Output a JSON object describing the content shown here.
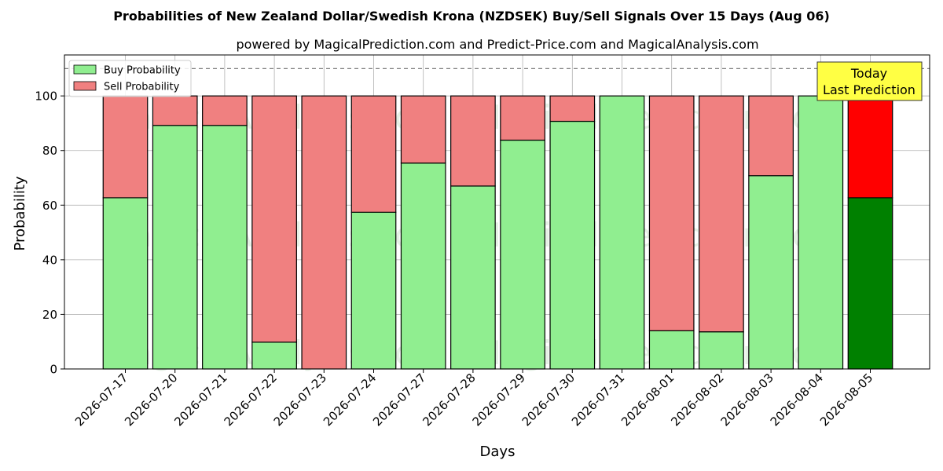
{
  "chart_data": {
    "type": "bar",
    "stacked": true,
    "title": "Probabilities of New Zealand Dollar/Swedish Krona (NZDSEK) Buy/Sell Signals Over 15 Days (Aug 06)",
    "subtitle": "powered by MagicalPrediction.com and Predict-Price.com and MagicalAnalysis.com",
    "xlabel": "Days",
    "ylabel": "Probability",
    "ylim": [
      0,
      115
    ],
    "yticks": [
      0,
      20,
      40,
      60,
      80,
      100
    ],
    "grid": true,
    "legend_position": "top-left",
    "reference_line": 110,
    "categories": [
      "2026-07-17",
      "2026-07-20",
      "2026-07-21",
      "2026-07-22",
      "2026-07-23",
      "2026-07-24",
      "2026-07-27",
      "2026-07-28",
      "2026-07-29",
      "2026-07-30",
      "2026-07-31",
      "2026-08-01",
      "2026-08-02",
      "2026-08-03",
      "2026-08-04",
      "2026-08-05"
    ],
    "series": [
      {
        "name": "Buy Probability",
        "color": "#90ee90",
        "highlight_color": "#008000",
        "values": [
          62.7,
          89.2,
          89.2,
          9.8,
          0.0,
          57.4,
          75.4,
          67.0,
          83.8,
          90.7,
          100.0,
          14.0,
          13.6,
          70.8,
          100.0,
          62.7
        ]
      },
      {
        "name": "Sell Probability",
        "color": "#f08080",
        "highlight_color": "#ff0000",
        "values": [
          37.3,
          10.8,
          10.8,
          90.2,
          100.0,
          42.6,
          24.6,
          33.0,
          16.2,
          9.3,
          0.0,
          86.0,
          86.4,
          29.2,
          0.0,
          37.3
        ]
      }
    ],
    "highlight_index": 15,
    "annotation": {
      "lines": [
        "Today",
        "Last Prediction"
      ],
      "background": "#ffff44"
    },
    "watermarks": [
      "MagicalAnalysis.com",
      "MagicalPrediction.com"
    ]
  }
}
